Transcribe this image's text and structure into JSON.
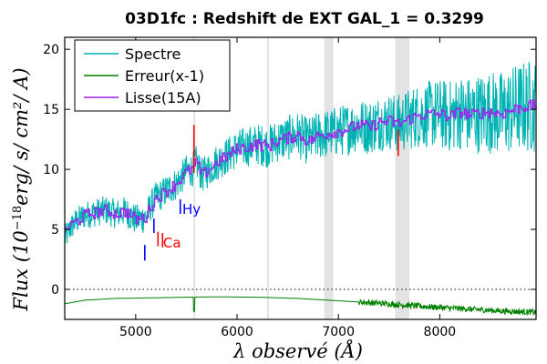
{
  "chart_data": {
    "type": "line",
    "title": "03D1fc : Redshift de EXT GAL_1 = 0.3299",
    "xlabel": "λ observé (Å)",
    "ylabel_prefix": "Flux (10",
    "ylabel_exponent": "−18",
    "ylabel_units": "erg/ s/ cm²/ A)",
    "xlim": [
      4300,
      8950
    ],
    "ylim": [
      -2.5,
      21
    ],
    "xticks": [
      5000,
      6000,
      7000,
      8000
    ],
    "yticks": [
      0,
      5,
      10,
      15,
      20
    ],
    "grid": false,
    "legend_position": "top-left",
    "zero_line": {
      "y": 0,
      "style": "dotted"
    },
    "shaded_bands": [
      [
        5570,
        5583
      ],
      [
        6295,
        6310
      ],
      [
        6860,
        6950
      ],
      [
        7560,
        7700
      ]
    ],
    "series": [
      {
        "name": "Spectre",
        "color": "#00b3b3",
        "points": [
          [
            4300,
            4.2
          ],
          [
            4350,
            5.0
          ],
          [
            4400,
            5.6
          ],
          [
            4500,
            6.2
          ],
          [
            4600,
            6.4
          ],
          [
            4700,
            6.6
          ],
          [
            4800,
            6.3
          ],
          [
            4900,
            6.5
          ],
          [
            5000,
            5.8
          ],
          [
            5100,
            6.0
          ],
          [
            5150,
            7.0
          ],
          [
            5200,
            7.6
          ],
          [
            5300,
            8.2
          ],
          [
            5400,
            8.8
          ],
          [
            5500,
            9.8
          ],
          [
            5560,
            10.0
          ],
          [
            5600,
            10.6
          ],
          [
            5650,
            9.5
          ],
          [
            5700,
            9.8
          ],
          [
            5800,
            10.6
          ],
          [
            5900,
            11.1
          ],
          [
            6000,
            11.7
          ],
          [
            6100,
            11.9
          ],
          [
            6200,
            12.1
          ],
          [
            6300,
            11.9
          ],
          [
            6400,
            12.4
          ],
          [
            6500,
            12.6
          ],
          [
            6600,
            12.9
          ],
          [
            6700,
            12.3
          ],
          [
            6800,
            12.8
          ],
          [
            6900,
            13.0
          ],
          [
            7000,
            13.2
          ],
          [
            7100,
            13.4
          ],
          [
            7200,
            13.7
          ],
          [
            7300,
            13.5
          ],
          [
            7400,
            13.9
          ],
          [
            7500,
            14.0
          ],
          [
            7600,
            13.8
          ],
          [
            7700,
            14.2
          ],
          [
            7800,
            14.5
          ],
          [
            7900,
            14.6
          ],
          [
            8000,
            14.6
          ],
          [
            8100,
            14.4
          ],
          [
            8200,
            14.8
          ],
          [
            8300,
            14.5
          ],
          [
            8400,
            14.7
          ],
          [
            8500,
            14.8
          ],
          [
            8600,
            14.6
          ],
          [
            8700,
            14.9
          ],
          [
            8800,
            15.2
          ],
          [
            8950,
            15.3
          ]
        ],
        "noise": [
          [
            4300,
            0.7
          ],
          [
            5600,
            0.9
          ],
          [
            7500,
            1.5
          ],
          [
            8950,
            2.5
          ]
        ]
      },
      {
        "name": "Erreur(x-1)",
        "color": "#008000",
        "points": [
          [
            4300,
            -1.2
          ],
          [
            4500,
            -0.9
          ],
          [
            4800,
            -0.75
          ],
          [
            5200,
            -0.7
          ],
          [
            5500,
            -0.65
          ],
          [
            5800,
            -0.62
          ],
          [
            6200,
            -0.65
          ],
          [
            6600,
            -0.75
          ],
          [
            7000,
            -0.95
          ],
          [
            7400,
            -1.15
          ],
          [
            7800,
            -1.4
          ],
          [
            8200,
            -1.6
          ],
          [
            8600,
            -1.8
          ],
          [
            8950,
            -1.9
          ]
        ]
      },
      {
        "name": "Lisse(15A)",
        "color": "#a020f0",
        "points": [
          [
            4300,
            5.0
          ],
          [
            4400,
            5.6
          ],
          [
            4500,
            6.2
          ],
          [
            4600,
            6.4
          ],
          [
            4700,
            6.6
          ],
          [
            4800,
            6.3
          ],
          [
            4900,
            6.5
          ],
          [
            5000,
            5.8
          ],
          [
            5100,
            6.0
          ],
          [
            5150,
            7.0
          ],
          [
            5200,
            7.6
          ],
          [
            5300,
            8.2
          ],
          [
            5400,
            8.8
          ],
          [
            5500,
            9.8
          ],
          [
            5560,
            10.0
          ],
          [
            5600,
            10.6
          ],
          [
            5650,
            9.5
          ],
          [
            5700,
            9.8
          ],
          [
            5800,
            10.6
          ],
          [
            5900,
            11.1
          ],
          [
            6000,
            11.7
          ],
          [
            6100,
            11.9
          ],
          [
            6200,
            12.1
          ],
          [
            6300,
            11.9
          ],
          [
            6400,
            12.4
          ],
          [
            6500,
            12.6
          ],
          [
            6600,
            12.9
          ],
          [
            6700,
            12.3
          ],
          [
            6800,
            12.8
          ],
          [
            6900,
            13.0
          ],
          [
            7000,
            13.2
          ],
          [
            7100,
            13.4
          ],
          [
            7200,
            13.7
          ],
          [
            7300,
            13.5
          ],
          [
            7400,
            13.9
          ],
          [
            7500,
            14.0
          ],
          [
            7600,
            13.8
          ],
          [
            7700,
            14.2
          ],
          [
            7800,
            14.5
          ],
          [
            7900,
            14.6
          ],
          [
            8000,
            14.6
          ],
          [
            8100,
            14.4
          ],
          [
            8200,
            14.8
          ],
          [
            8300,
            14.5
          ],
          [
            8400,
            14.7
          ],
          [
            8500,
            14.8
          ],
          [
            8600,
            14.6
          ],
          [
            8700,
            14.9
          ],
          [
            8800,
            15.2
          ],
          [
            8950,
            15.3
          ]
        ]
      }
    ],
    "line_markers": [
      {
        "label": "",
        "color": "#0000ff",
        "x": 5090,
        "y0": 2.4,
        "y1": 3.7
      },
      {
        "label": "",
        "color": "#0000ff",
        "x": 5180,
        "y0": 4.7,
        "y1": 5.9
      },
      {
        "label": "Ca",
        "color": "#ff0000",
        "x": 5220,
        "y0": 3.6,
        "y1": 4.8,
        "text_pos": [
          5270,
          3.5
        ]
      },
      {
        "label": "",
        "color": "#ff0000",
        "x": 5265,
        "y0": 3.5,
        "y1": 4.7
      },
      {
        "label": "Hy",
        "color": "#0000ff",
        "x": 5440,
        "y0": 6.3,
        "y1": 7.5,
        "text_pos": [
          5460,
          6.3
        ]
      },
      {
        "label": "",
        "color": "#ff0000",
        "x": 5575,
        "y0": 9.7,
        "y1": 13.7
      },
      {
        "label": "",
        "color": "#ff0000",
        "x": 7590,
        "y0": 11.1,
        "y1": 13.3
      }
    ]
  }
}
